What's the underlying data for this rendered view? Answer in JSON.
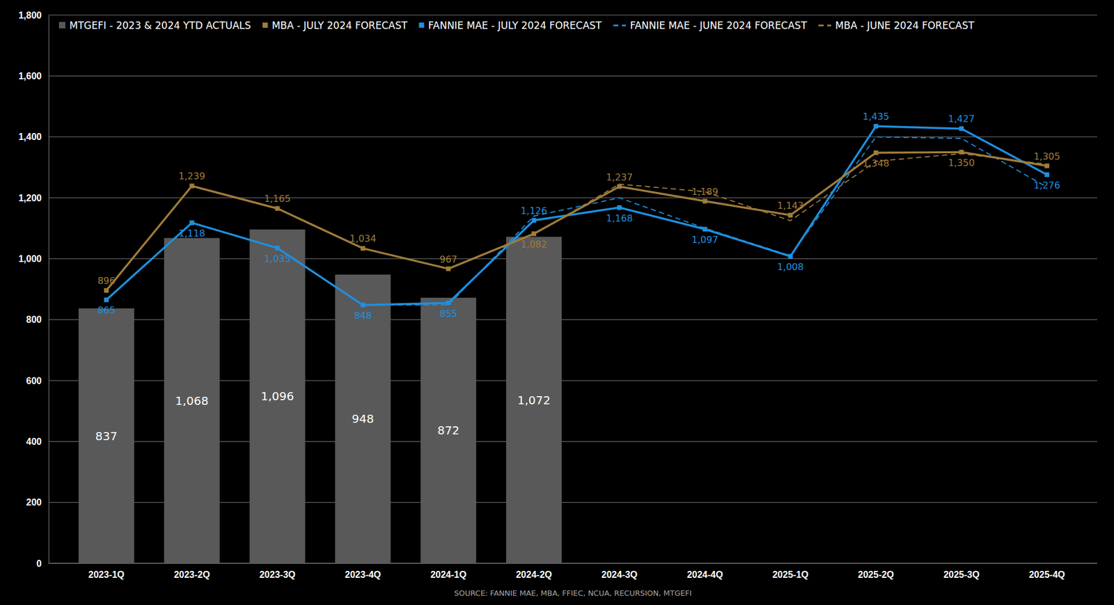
{
  "chart_data": {
    "type": "bar",
    "categories": [
      "2023-1Q",
      "2023-2Q",
      "2023-3Q",
      "2023-4Q",
      "2024-1Q",
      "2024-2Q",
      "2024-3Q",
      "2024-4Q",
      "2025-1Q",
      "2025-2Q",
      "2025-3Q",
      "2025-4Q"
    ],
    "ylim": [
      0,
      1800
    ],
    "yticks": [
      0,
      200,
      400,
      600,
      800,
      {
        "value": 1000,
        "label": "1,000"
      },
      {
        "value": 1200,
        "label": "1,200"
      },
      {
        "value": 1400,
        "label": "1,400"
      },
      {
        "value": 1600,
        "label": "1,600"
      },
      {
        "value": 1800,
        "label": "1,800"
      }
    ],
    "grid": true,
    "legend": "top",
    "annotations": [
      "SOURCE: FANNIE MAE, MBA, FFIEC, NCUA, RECURSION, MTGEFI"
    ],
    "series": [
      {
        "name": "MTGEFI - 2023 & 2024 YTD ACTUALS",
        "type": "bar",
        "color": "#595959",
        "data_labels": true,
        "values": [
          837,
          1068,
          1096,
          948,
          872,
          1072,
          null,
          null,
          null,
          null,
          null,
          null
        ],
        "value_labels": [
          "837",
          "1,068",
          "1,096",
          "948",
          "872",
          "1,072",
          null,
          null,
          null,
          null,
          null,
          null
        ]
      },
      {
        "name": "MBA - JULY 2024 FORECAST",
        "type": "line",
        "color": "#a07c3a",
        "marker": "square",
        "line_style": "solid",
        "data_labels": true,
        "values": [
          896,
          1239,
          1165,
          1034,
          967,
          1082,
          1237,
          1189,
          1143,
          1348,
          1350,
          1305
        ],
        "value_labels": [
          "896",
          "1,239",
          "1,165",
          "1,034",
          "967",
          "1,082",
          "1,237",
          "1,189",
          "1,143",
          "1,348",
          "1,350",
          "1,305"
        ]
      },
      {
        "name": "FANNIE MAE - JULY 2024 FORECAST",
        "type": "line",
        "color": "#1e90e0",
        "marker": "square",
        "line_style": "solid",
        "data_labels": true,
        "values": [
          865,
          1118,
          1035,
          848,
          855,
          1126,
          1168,
          1097,
          1008,
          1435,
          1427,
          1276
        ],
        "value_labels": [
          "865",
          "1,118",
          "1,035",
          "848",
          "855",
          "1,126",
          "1,168",
          "1,097",
          "1,008",
          "1,435",
          "1,427",
          "1,276"
        ]
      },
      {
        "name": "FANNIE MAE - JUNE 2024 FORECAST",
        "type": "line",
        "color": "#1e90e0",
        "marker": "none",
        "line_style": "dashed",
        "data_labels": false,
        "values": [
          null,
          null,
          null,
          848,
          848,
          1140,
          1200,
          1100,
          1010,
          1400,
          1395,
          1235
        ]
      },
      {
        "name": "MBA - JUNE 2024 FORECAST",
        "type": "line",
        "color": "#a07c3a",
        "marker": "none",
        "line_style": "dashed",
        "data_labels": false,
        "values": [
          null,
          null,
          null,
          null,
          967,
          1080,
          1245,
          1220,
          1125,
          1320,
          1345,
          1310
        ]
      }
    ]
  }
}
